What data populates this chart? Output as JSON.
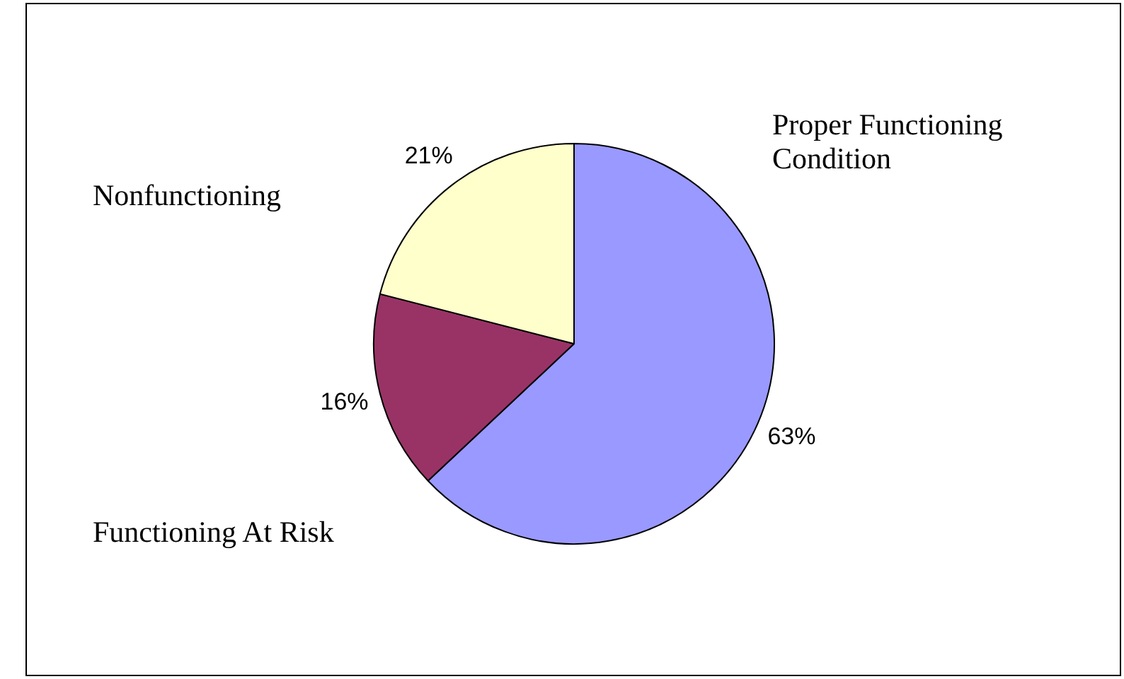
{
  "chart_data": {
    "type": "pie",
    "categories": [
      "Proper Functioning Condition",
      "Functioning At Risk",
      "Nonfunctioning"
    ],
    "values": [
      63,
      16,
      21
    ],
    "value_labels": [
      "63%",
      "16%",
      "21%"
    ],
    "colors": [
      "#9999ff",
      "#993366",
      "#ffffcc"
    ],
    "legend": false
  }
}
